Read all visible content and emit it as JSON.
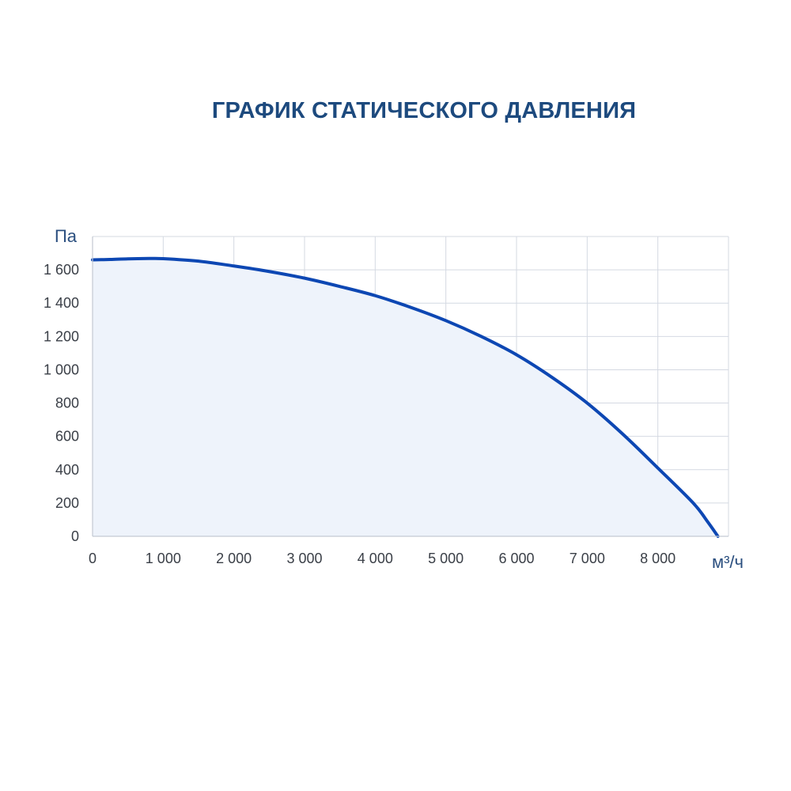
{
  "chart_data": {
    "type": "area",
    "title": "ГРАФИК СТАТИЧЕСКОГО ДАВЛЕНИЯ",
    "xlabel": "м³/ч",
    "ylabel": "Па",
    "xlim": [
      0,
      9000
    ],
    "ylim": [
      0,
      1800
    ],
    "x_ticks": [
      0,
      1000,
      2000,
      3000,
      4000,
      5000,
      6000,
      7000,
      8000
    ],
    "x_tick_labels": [
      "0",
      "1 000",
      "2 000",
      "3 000",
      "4 000",
      "5 000",
      "6 000",
      "7 000",
      "8 000"
    ],
    "y_ticks": [
      0,
      200,
      400,
      600,
      800,
      1000,
      1200,
      1400,
      1600
    ],
    "y_tick_labels": [
      "0",
      "200",
      "400",
      "600",
      "800",
      "1 000",
      "1 200",
      "1 400",
      "1 600"
    ],
    "grid": true,
    "colors": {
      "line": "#0d47b3",
      "fill": "#eef3fb",
      "grid": "#d4d9e2",
      "title": "#1d4a7e"
    },
    "series": [
      {
        "x": [
          0,
          250,
          500,
          800,
          1000,
          1500,
          2000,
          2500,
          3000,
          3500,
          4000,
          4500,
          5000,
          5500,
          6000,
          6500,
          7000,
          7500,
          8000,
          8500,
          8700,
          8850
        ],
        "y": [
          1660,
          1662,
          1666,
          1668,
          1667,
          1652,
          1623,
          1590,
          1550,
          1500,
          1445,
          1375,
          1295,
          1200,
          1090,
          955,
          800,
          615,
          410,
          200,
          90,
          0
        ]
      }
    ]
  }
}
